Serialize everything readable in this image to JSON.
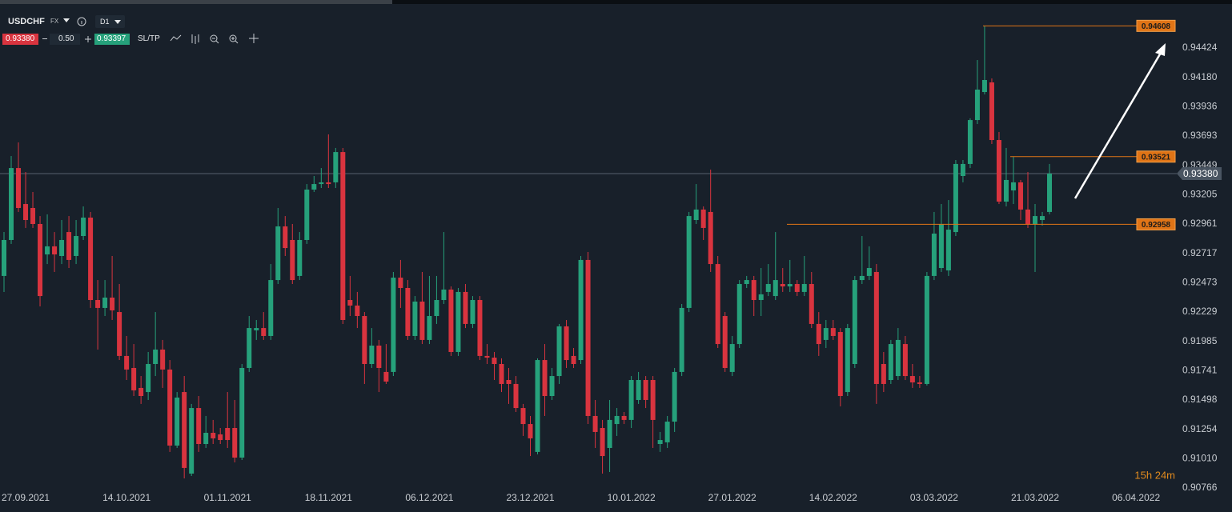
{
  "toolbar": {
    "symbol": "USDCHF",
    "market": "FX",
    "timeframe": "D1",
    "sell_price": "0.93380",
    "volume": "0.50",
    "buy_price": "0.93397",
    "sl_tp": "SL/TP"
  },
  "timer": "15h 24m",
  "chart_data": {
    "type": "candlestick",
    "categories": [
      null,
      null,
      null,
      "27.09.2021",
      null,
      null,
      null,
      null,
      null,
      null,
      null,
      null,
      null,
      null,
      null,
      null,
      null,
      "14.10.2021",
      null,
      null,
      null,
      null,
      null,
      null,
      null,
      null,
      null,
      null,
      null,
      null,
      null,
      "01.11.2021",
      null,
      null,
      null,
      null,
      null,
      null,
      null,
      null,
      null,
      null,
      null,
      null,
      null,
      "18.11.2021",
      null,
      null,
      null,
      null,
      null,
      null,
      null,
      null,
      null,
      null,
      null,
      null,
      null,
      "06.12.2021",
      null,
      null,
      null,
      null,
      null,
      null,
      null,
      null,
      null,
      null,
      null,
      null,
      null,
      "23.12.2021",
      null,
      null,
      null,
      null,
      null,
      null,
      null,
      null,
      null,
      null,
      null,
      null,
      null,
      "10.01.2022",
      null,
      null,
      null,
      null,
      null,
      null,
      null,
      null,
      null,
      null,
      null,
      null,
      null,
      "27.01.2022",
      null,
      null,
      null,
      null,
      null,
      null,
      null,
      null,
      null,
      null,
      null,
      null,
      null,
      "14.02.2022",
      null,
      null,
      null,
      null,
      null,
      null,
      null,
      null,
      null,
      null,
      null,
      null,
      null,
      "03.03.2022",
      null,
      null,
      null,
      null,
      null,
      null,
      null,
      null,
      null,
      null,
      null,
      null,
      null,
      "21.03.2022",
      null,
      null,
      null,
      null,
      null,
      null,
      null,
      null,
      null,
      null,
      null,
      null,
      null,
      "06.04.2022"
    ],
    "open": [
      0.92529,
      0.92828,
      0.93426,
      0.93127,
      0.93094,
      0.92961,
      0.92708,
      0.92775,
      0.92695,
      0.92894,
      0.92695,
      0.92861,
      0.93014,
      0.92329,
      0.92263,
      0.92349,
      0.92229,
      0.91864,
      0.91764,
      0.91598,
      0.91564,
      0.91797,
      0.91917,
      0.91751,
      0.91119,
      0.91564,
      0.90886,
      0.91431,
      0.91132,
      0.91225,
      0.91212,
      0.91265,
      0.91265,
      0.91019,
      0.91764,
      0.92077,
      0.92096,
      0.9203,
      0.92495,
      0.92941,
      0.92828,
      0.92529,
      0.92828,
      0.93247,
      0.93293,
      0.93307,
      0.93307,
      0.93559,
      0.92329,
      0.92283,
      0.92196,
      0.91797,
      0.9195,
      0.91731,
      0.91731,
      0.92515,
      0.92429,
      0.9203,
      0.92316,
      0.91997,
      0.92196,
      0.92329,
      0.92416,
      0.91897,
      0.92396,
      0.9213,
      0.92329,
      0.91864,
      0.9185,
      0.91797,
      0.91664,
      0.91631,
      0.91431,
      0.91298,
      0.91066,
      0.9183,
      0.91531,
      0.91697,
      0.9211,
      0.91864,
      0.9183,
      0.92662,
      0.91365,
      0.91265,
      0.91099,
      0.91298,
      0.91365,
      0.91332,
      0.91498,
      0.91664,
      0.91664,
      0.91132,
      0.91146,
      0.91318,
      0.91731,
      0.92263,
      0.92994,
      0.93081,
      0.93061,
      0.92628,
      0.92196,
      0.91731,
      0.91963,
      0.92462,
      0.92495,
      0.92329,
      0.92396,
      0.92362,
      0.92462,
      0.92442,
      0.92462,
      0.92396,
      0.92462,
      0.9213,
      0.91997,
      0.92096,
      0.92063,
      0.91564,
      0.91797,
      0.92495,
      0.92529,
      0.92562,
      0.91797,
      0.91664,
      0.91697,
      0.91963,
      0.91697,
      0.91644,
      0.91631,
      0.92529,
      0.92595,
      0.92575,
      0.92894,
      0.9336,
      0.9346,
      0.93825,
      0.94058,
      0.94138,
      0.93659,
      0.93147,
      0.9324,
      0.93307,
      0.93081,
      0.92961,
      0.92994,
      0.93061,
      null,
      null,
      null,
      null,
      null,
      null,
      null,
      null,
      null,
      null,
      null,
      null
    ],
    "high": [
      0.92894,
      0.93526,
      0.93639,
      0.93393,
      0.93227,
      0.93027,
      0.93041,
      0.92894,
      0.92994,
      0.93027,
      0.92994,
      0.93107,
      0.93061,
      0.92495,
      0.92495,
      0.92695,
      0.92462,
      0.9203,
      0.91963,
      0.91697,
      0.91897,
      0.92229,
      0.91997,
      0.9183,
      0.91564,
      0.91697,
      0.91465,
      0.91531,
      0.91365,
      0.91332,
      0.91265,
      0.91564,
      0.91498,
      0.91797,
      0.92196,
      0.92163,
      0.92229,
      0.92628,
      0.93094,
      0.93027,
      0.92961,
      0.92894,
      0.93293,
      0.9336,
      0.93426,
      0.93706,
      0.93593,
      0.93593,
      0.92529,
      0.92396,
      0.92229,
      0.92096,
      0.91997,
      0.91963,
      0.92562,
      0.92662,
      0.92495,
      0.92362,
      0.92562,
      0.92529,
      0.92529,
      0.92894,
      0.92442,
      0.92429,
      0.92462,
      0.92362,
      0.92362,
      0.91963,
      0.91897,
      0.91844,
      0.91764,
      0.91697,
      0.91465,
      0.91365,
      0.91844,
      0.91963,
      0.91764,
      0.9213,
      0.92163,
      0.9193,
      0.92695,
      0.92728,
      0.91498,
      0.91332,
      0.91498,
      0.91431,
      0.91398,
      0.91697,
      0.91731,
      0.91697,
      0.91697,
      0.91232,
      0.91365,
      0.91764,
      0.92296,
      0.93061,
      0.93293,
      0.93107,
      0.93413,
      0.92695,
      0.92229,
      0.9203,
      0.92495,
      0.92529,
      0.92529,
      0.92595,
      0.92628,
      0.92894,
      0.92595,
      0.92662,
      0.92495,
      0.92695,
      0.92562,
      0.92229,
      0.92163,
      0.92163,
      0.92096,
      0.9213,
      0.92529,
      0.92861,
      0.92775,
      0.92628,
      0.91897,
      0.91997,
      0.92096,
      0.9203,
      0.91797,
      0.91697,
      0.92562,
      0.93061,
      0.93127,
      0.9316,
      0.93493,
      0.93493,
      0.93839,
      0.94324,
      0.94608,
      0.94171,
      0.93726,
      0.93593,
      0.93521,
      0.93327,
      0.93393,
      0.93127,
      0.93061,
      0.9346,
      null,
      null,
      null,
      null,
      null,
      null,
      null,
      null,
      null,
      null,
      null,
      null
    ],
    "low": [
      0.92396,
      0.92795,
      0.93061,
      0.92928,
      0.92928,
      0.92276,
      0.92628,
      0.92562,
      0.92628,
      0.92595,
      0.92628,
      0.92828,
      0.92263,
      0.91917,
      0.92196,
      0.92163,
      0.9183,
      0.91664,
      0.91531,
      0.91465,
      0.91498,
      0.91697,
      0.91598,
      0.91066,
      0.91099,
      0.90846,
      0.90866,
      0.91066,
      0.91099,
      0.91132,
      0.91132,
      0.91099,
      0.90979,
      0.90999,
      0.91731,
      0.91997,
      0.91997,
      0.91997,
      0.92462,
      0.92695,
      0.92462,
      0.92495,
      0.92795,
      0.93227,
      0.9326,
      0.9326,
      0.9326,
      0.9213,
      0.92196,
      0.92096,
      0.91631,
      0.91764,
      0.91564,
      0.91631,
      0.91697,
      0.92263,
      0.91997,
      0.91997,
      0.91963,
      0.91963,
      0.9213,
      0.92296,
      0.91864,
      0.91864,
      0.92096,
      0.92096,
      0.9183,
      0.91797,
      0.91664,
      0.91564,
      0.91465,
      0.91398,
      0.91199,
      0.91032,
      0.91046,
      0.91365,
      0.91498,
      0.91631,
      0.91764,
      0.91764,
      0.91797,
      0.91298,
      0.91099,
      0.90886,
      0.90899,
      0.91199,
      0.91298,
      0.91265,
      0.91465,
      0.91431,
      0.91099,
      0.91066,
      0.91099,
      0.91232,
      0.91697,
      0.92229,
      0.92961,
      0.92828,
      0.92562,
      0.9193,
      0.91731,
      0.91697,
      0.9193,
      0.92429,
      0.92196,
      0.92196,
      0.92362,
      0.92329,
      0.92396,
      0.92396,
      0.92362,
      0.92362,
      0.92096,
      0.91864,
      0.9193,
      0.91997,
      0.91445,
      0.91531,
      0.91764,
      0.92462,
      0.92495,
      0.91465,
      0.91564,
      0.91631,
      0.91664,
      0.91664,
      0.91598,
      0.91598,
      0.91618,
      0.92495,
      0.92562,
      0.92529,
      0.92861,
      0.93307,
      0.93426,
      0.93792,
      0.94038,
      0.93626,
      0.93127,
      0.93107,
      0.93127,
      0.92994,
      0.92928,
      0.92562,
      0.92948,
      0.93041,
      null,
      null,
      null,
      null,
      null,
      null,
      null,
      null,
      null,
      null,
      null,
      null
    ],
    "close": [
      0.92828,
      0.93426,
      0.93094,
      0.92994,
      0.92961,
      0.92362,
      0.92775,
      0.92708,
      0.92828,
      0.92662,
      0.92861,
      0.93014,
      0.92329,
      0.92263,
      0.92349,
      0.92243,
      0.91864,
      0.91751,
      0.91578,
      0.91531,
      0.91797,
      0.91917,
      0.91751,
      0.91119,
      0.91518,
      0.90933,
      0.91431,
      0.91132,
      0.91225,
      0.91179,
      0.91165,
      0.91165,
      0.91019,
      0.91764,
      0.92096,
      0.92096,
      0.9203,
      0.92495,
      0.92941,
      0.92761,
      0.92495,
      0.92828,
      0.93247,
      0.93293,
      0.93307,
      0.93293,
      0.93559,
      0.92163,
      0.92283,
      0.92196,
      0.91797,
      0.9195,
      0.91764,
      0.91651,
      0.92515,
      0.92429,
      0.9203,
      0.92316,
      0.91997,
      0.92196,
      0.92329,
      0.92416,
      0.91897,
      0.92396,
      0.9213,
      0.92329,
      0.91864,
      0.9185,
      0.91797,
      0.91631,
      0.91631,
      0.91431,
      0.91298,
      0.91179,
      0.9183,
      0.91531,
      0.91697,
      0.9211,
      0.9183,
      0.91797,
      0.92662,
      0.91365,
      0.91232,
      0.91032,
      0.91332,
      0.91365,
      0.91332,
      0.91664,
      0.91664,
      0.91498,
      0.91332,
      0.91165,
      0.91318,
      0.91731,
      0.92263,
      0.93027,
      0.93081,
      0.92928,
      0.92628,
      0.91963,
      0.91764,
      0.91963,
      0.92462,
      0.92495,
      0.92329,
      0.92376,
      0.92462,
      0.92495,
      0.92442,
      0.92462,
      0.92396,
      0.92462,
      0.9213,
      0.91963,
      0.92096,
      0.9203,
      0.91531,
      0.92096,
      0.92495,
      0.92529,
      0.92595,
      0.91631,
      0.91631,
      0.91963,
      0.91997,
      0.91697,
      0.91644,
      0.91631,
      0.92529,
      0.92881,
      0.92961,
      0.92914,
      0.9346,
      0.9346,
      0.93825,
      0.94078,
      0.94158,
      0.93659,
      0.93147,
      0.93327,
      0.93307,
      0.93081,
      0.92961,
      0.93027,
      0.93027,
      0.9338,
      null,
      null,
      null,
      null,
      null,
      null,
      null,
      null,
      null,
      null,
      null,
      null
    ],
    "colors": {
      "up": "#26a17b",
      "down": "#d9343f"
    },
    "ylim": [
      0.90733,
      0.94823
    ],
    "yticks": [
      0.94424,
      {
        "value": 0.9418,
        "label": "0.94180"
      },
      0.93936,
      0.93693,
      0.93449,
      0.93205,
      0.92961,
      0.92717,
      0.92473,
      0.92229,
      0.91985,
      0.91741,
      0.91498,
      0.91254,
      {
        "value": 0.9101,
        "label": "0.91010"
      },
      0.90766
    ],
    "current_price": {
      "value": 0.9338,
      "label": "0.93380"
    },
    "price_levels": [
      0.94608,
      0.93521,
      0.92958
    ],
    "level_color": "#e07416"
  }
}
